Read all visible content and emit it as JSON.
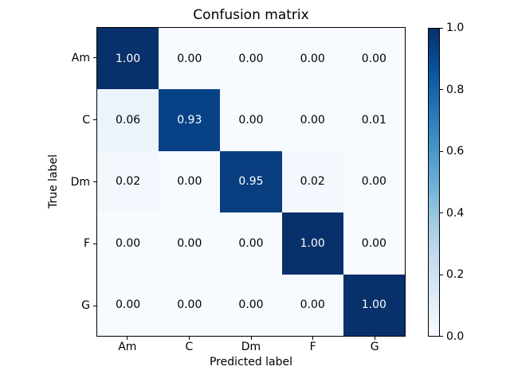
{
  "figure": {
    "background": "#ffffff",
    "border_color": "#000000"
  },
  "chart_data": {
    "type": "heatmap",
    "title": "Confusion matrix",
    "xlabel": "Predicted label",
    "ylabel": "True label",
    "x_categories": [
      "Am",
      "C",
      "Dm",
      "F",
      "G"
    ],
    "y_categories": [
      "Am",
      "C",
      "Dm",
      "F",
      "G"
    ],
    "values": [
      [
        1.0,
        0.0,
        0.0,
        0.0,
        0.0
      ],
      [
        0.06,
        0.93,
        0.0,
        0.0,
        0.01
      ],
      [
        0.02,
        0.0,
        0.95,
        0.02,
        0.0
      ],
      [
        0.0,
        0.0,
        0.0,
        1.0,
        0.0
      ],
      [
        0.0,
        0.0,
        0.0,
        0.0,
        1.0
      ]
    ],
    "cell_labels": [
      [
        "1.00",
        "0.00",
        "0.00",
        "0.00",
        "0.00"
      ],
      [
        "0.06",
        "0.93",
        "0.00",
        "0.00",
        "0.01"
      ],
      [
        "0.02",
        "0.00",
        "0.95",
        "0.02",
        "0.00"
      ],
      [
        "0.00",
        "0.00",
        "0.00",
        "1.00",
        "0.00"
      ],
      [
        "0.00",
        "0.00",
        "0.00",
        "0.00",
        "1.00"
      ]
    ],
    "colormap": "Blues",
    "cmap_stops": [
      "#f7fbff",
      "#deebf7",
      "#c6dbef",
      "#9ecae1",
      "#6baed6",
      "#4292c6",
      "#2171b5",
      "#08519c",
      "#08306b"
    ],
    "value_range": [
      0,
      1
    ],
    "grid": false,
    "legend": "colorbar-right",
    "colorbar_ticks": [
      "1.0",
      "0.8",
      "0.6",
      "0.4",
      "0.2",
      "0.0"
    ],
    "text_color_threshold": 0.5,
    "text_light": "#ffffff",
    "text_dark": "#000000"
  }
}
